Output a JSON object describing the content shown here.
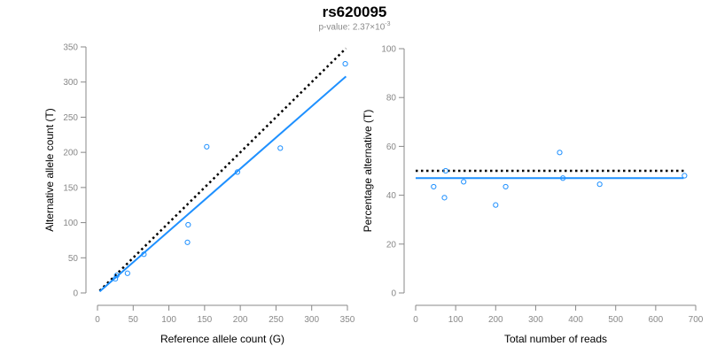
{
  "figure": {
    "title": "rs620095",
    "subtitle_prefix": "p-value: 2.37×10",
    "subtitle_exponent": "-3"
  },
  "colors": {
    "points": "#1e90ff",
    "fit_line": "#1e90ff",
    "reference_line": "#000000",
    "axis": "#888888",
    "tick_text": "#888888",
    "label_text": "#000000"
  },
  "chart_data": [
    {
      "type": "scatter",
      "xlabel": "Reference allele count (G)",
      "ylabel": "Alternative allele count (T)",
      "xlim": [
        0,
        350
      ],
      "ylim": [
        0,
        350
      ],
      "xticks": [
        0,
        50,
        100,
        150,
        200,
        250,
        300,
        350
      ],
      "yticks": [
        0,
        50,
        100,
        150,
        200,
        250,
        300,
        350
      ],
      "grid": false,
      "points": [
        {
          "x": 25,
          "y": 20
        },
        {
          "x": 27,
          "y": 25
        },
        {
          "x": 42,
          "y": 28
        },
        {
          "x": 65,
          "y": 55
        },
        {
          "x": 126,
          "y": 72
        },
        {
          "x": 127,
          "y": 97
        },
        {
          "x": 153,
          "y": 208
        },
        {
          "x": 196,
          "y": 172
        },
        {
          "x": 256,
          "y": 206
        },
        {
          "x": 347,
          "y": 326
        }
      ],
      "fit_line": [
        [
          3,
          2
        ],
        [
          348,
          308
        ]
      ],
      "reference_line": [
        [
          3,
          3
        ],
        [
          348,
          348
        ]
      ]
    },
    {
      "type": "scatter",
      "xlabel": "Total number of reads",
      "ylabel": "Percentage alternative (T)",
      "xlim": [
        0,
        700
      ],
      "ylim": [
        0,
        100
      ],
      "xticks": [
        0,
        100,
        200,
        300,
        400,
        500,
        600,
        700
      ],
      "yticks": [
        0,
        20,
        40,
        60,
        80,
        100
      ],
      "grid": false,
      "points": [
        {
          "x": 45,
          "y": 43.5
        },
        {
          "x": 72,
          "y": 39
        },
        {
          "x": 75,
          "y": 50
        },
        {
          "x": 120,
          "y": 45.5
        },
        {
          "x": 200,
          "y": 36
        },
        {
          "x": 225,
          "y": 43.5
        },
        {
          "x": 360,
          "y": 57.5
        },
        {
          "x": 368,
          "y": 47
        },
        {
          "x": 460,
          "y": 44.5
        },
        {
          "x": 672,
          "y": 48
        }
      ],
      "fit_line": [
        [
          0,
          47
        ],
        [
          670,
          47
        ]
      ],
      "reference_line": [
        [
          0,
          50
        ],
        [
          670,
          50
        ]
      ]
    }
  ]
}
